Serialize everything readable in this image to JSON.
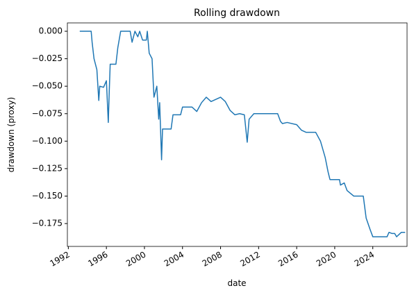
{
  "chart_data": {
    "type": "line",
    "title": "Rolling drawdown",
    "x_label": "date",
    "y_label": "drawdown (proxy)",
    "series": [
      {
        "name": "drawdown",
        "color": "#1f77b4",
        "x": [
          1993.2,
          1994.4,
          1994.5,
          1994.7,
          1995.0,
          1995.2,
          1995.3,
          1995.7,
          1996.0,
          1996.2,
          1996.3,
          1996.4,
          1997.0,
          1997.2,
          1997.5,
          1998.5,
          1998.7,
          1999.0,
          1999.3,
          1999.5,
          1999.8,
          2000.2,
          2000.3,
          2000.5,
          2000.8,
          2001.0,
          2001.3,
          2001.5,
          2001.6,
          2001.8,
          2001.9,
          2002.8,
          2003.0,
          2003.8,
          2004.0,
          2005.0,
          2005.5,
          2006.0,
          2006.5,
          2007.0,
          2007.5,
          2008.0,
          2008.5,
          2009.0,
          2009.5,
          2010.0,
          2010.5,
          2010.8,
          2011.0,
          2011.5,
          2012.0,
          2013.0,
          2014.0,
          2014.3,
          2014.5,
          2015.0,
          2016.0,
          2016.5,
          2017.0,
          2018.0,
          2018.5,
          2019.0,
          2019.3,
          2019.5,
          2020.5,
          2020.6,
          2021.0,
          2021.3,
          2022.0,
          2023.0,
          2023.3,
          2023.7,
          2024.0,
          2025.5,
          2025.7,
          2026.0,
          2026.3,
          2026.5,
          2027.0,
          2027.4
        ],
        "values": [
          0,
          0,
          -0.01,
          -0.025,
          -0.035,
          -0.063,
          -0.05,
          -0.051,
          -0.045,
          -0.083,
          -0.055,
          -0.03,
          -0.03,
          -0.015,
          0,
          0,
          -0.01,
          0,
          -0.005,
          0,
          -0.008,
          -0.008,
          0,
          -0.02,
          -0.025,
          -0.06,
          -0.05,
          -0.08,
          -0.065,
          -0.117,
          -0.089,
          -0.089,
          -0.076,
          -0.076,
          -0.069,
          -0.069,
          -0.073,
          -0.065,
          -0.06,
          -0.064,
          -0.062,
          -0.06,
          -0.064,
          -0.072,
          -0.076,
          -0.075,
          -0.076,
          -0.101,
          -0.08,
          -0.075,
          -0.075,
          -0.075,
          -0.075,
          -0.082,
          -0.084,
          -0.083,
          -0.085,
          -0.09,
          -0.092,
          -0.092,
          -0.1,
          -0.115,
          -0.128,
          -0.135,
          -0.135,
          -0.14,
          -0.138,
          -0.145,
          -0.15,
          -0.15,
          -0.17,
          -0.18,
          -0.187,
          -0.187,
          -0.183,
          -0.184,
          -0.184,
          -0.187,
          -0.183,
          -0.183
        ]
      }
    ],
    "xlim": [
      1991.9,
      2027.6
    ],
    "xticks": [
      1992,
      1996,
      2000,
      2004,
      2008,
      2012,
      2016,
      2020,
      2024
    ],
    "ylim": [
      -0.1958,
      0.0076
    ],
    "yticks": [
      {
        "value": 0,
        "label": "0.000"
      },
      {
        "value": -0.025,
        "label": "−0.025"
      },
      {
        "value": -0.05,
        "label": "−0.050"
      },
      {
        "value": -0.075,
        "label": "−0.075"
      },
      {
        "value": -0.1,
        "label": "−0.100"
      },
      {
        "value": -0.125,
        "label": "−0.125"
      },
      {
        "value": -0.15,
        "label": "−0.150"
      },
      {
        "value": -0.175,
        "label": "−0.175"
      }
    ],
    "grid": false
  }
}
